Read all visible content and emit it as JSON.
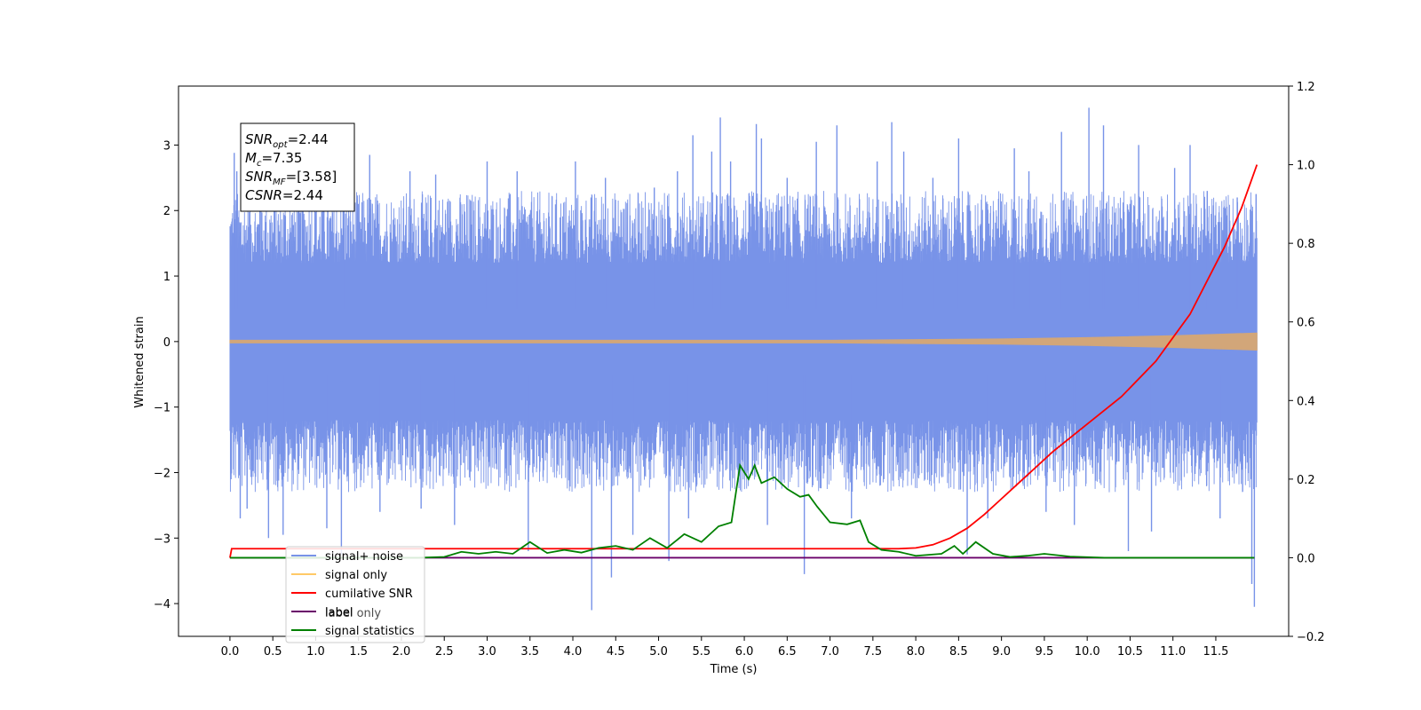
{
  "chart_data": {
    "type": "line",
    "xlabel": "Time (s)",
    "ylabel": "Whitened strain",
    "xlim": [
      -0.6,
      12.35
    ],
    "ylim": [
      -4.5,
      3.9
    ],
    "y2lim": [
      -0.2,
      1.2
    ],
    "x_ticks": [
      0.0,
      0.5,
      1.0,
      1.5,
      2.0,
      2.5,
      3.0,
      3.5,
      4.0,
      4.5,
      5.0,
      5.5,
      6.0,
      6.5,
      7.0,
      7.5,
      8.0,
      8.5,
      9.0,
      9.5,
      10.0,
      10.5,
      11.0,
      11.5
    ],
    "x_tick_labels": [
      "0.0",
      "0.5",
      "1.0",
      "1.5",
      "2.0",
      "2.5",
      "3.0",
      "3.5",
      "4.0",
      "4.5",
      "5.0",
      "5.5",
      "6.0",
      "6.5",
      "7.0",
      "7.5",
      "8.0",
      "8.5",
      "9.0",
      "9.5",
      "10.0",
      "10.5",
      "11.0",
      "11.5"
    ],
    "y_ticks": [
      3,
      2,
      1,
      0,
      -1,
      -2,
      -3,
      -4
    ],
    "y_tick_labels": [
      "3",
      "2",
      "1",
      "0",
      "−1",
      "−2",
      "−3",
      "−4"
    ],
    "y2_ticks": [
      1.2,
      1.0,
      0.8,
      0.6,
      0.4,
      0.2,
      0.0,
      -0.2
    ],
    "y2_tick_labels": [
      "1.2",
      "1.0",
      "0.8",
      "0.6",
      "0.4",
      "0.2",
      "0.0",
      "−0.2"
    ],
    "annotation": {
      "lines": [
        {
          "sym": "SNR",
          "sub": "opt",
          "val": "=2.44"
        },
        {
          "sym": "M",
          "sub": "c",
          "val": "=7.35"
        },
        {
          "sym": "SNR",
          "sub": "MF",
          "val": "=[3.58]"
        },
        {
          "sym": "CSNR",
          "sub": "",
          "val": "=2.44"
        }
      ]
    },
    "legend": {
      "position": "lower-left",
      "entries": [
        {
          "label": "signal+ noise",
          "color": "#7893e8"
        },
        {
          "label": "signal only",
          "color": "#ffc966"
        },
        {
          "label": "cumilative SNR",
          "color": "#ff0000"
        },
        {
          "label": "label",
          "color": "#6a006a"
        },
        {
          "label": "signal statistics",
          "color": "#008000"
        }
      ],
      "faded_label": "label only"
    },
    "series": [
      {
        "name": "signal+ noise",
        "color": "#7893e8",
        "axis": "left",
        "x_range": [
          0.0,
          11.98
        ],
        "band": {
          "upper_typical": [
            1.2,
            2.3
          ],
          "lower_typical": [
            -1.2,
            -2.3
          ]
        },
        "spikes": [
          {
            "x": 0.05,
            "y": 2.88
          },
          {
            "x": 0.08,
            "y": 2.6
          },
          {
            "x": 0.12,
            "y": -2.7
          },
          {
            "x": 0.2,
            "y": -2.55
          },
          {
            "x": 0.35,
            "y": 2.5
          },
          {
            "x": 0.45,
            "y": -3.0
          },
          {
            "x": 0.62,
            "y": -2.95
          },
          {
            "x": 0.8,
            "y": 2.45
          },
          {
            "x": 1.13,
            "y": -2.85
          },
          {
            "x": 1.3,
            "y": -3.25
          },
          {
            "x": 1.33,
            "y": 2.3
          },
          {
            "x": 1.63,
            "y": 2.85
          },
          {
            "x": 1.75,
            "y": -2.6
          },
          {
            "x": 2.1,
            "y": 2.6
          },
          {
            "x": 2.23,
            "y": -2.55
          },
          {
            "x": 2.4,
            "y": 2.55
          },
          {
            "x": 2.62,
            "y": -2.8
          },
          {
            "x": 3.0,
            "y": 2.75
          },
          {
            "x": 3.35,
            "y": 2.6
          },
          {
            "x": 3.48,
            "y": -3.2
          },
          {
            "x": 4.03,
            "y": 2.75
          },
          {
            "x": 4.22,
            "y": -4.1
          },
          {
            "x": 4.38,
            "y": 2.5
          },
          {
            "x": 4.45,
            "y": -3.6
          },
          {
            "x": 4.7,
            "y": -2.95
          },
          {
            "x": 4.95,
            "y": 2.35
          },
          {
            "x": 5.12,
            "y": -3.35
          },
          {
            "x": 5.22,
            "y": 2.6
          },
          {
            "x": 5.35,
            "y": -2.7
          },
          {
            "x": 5.4,
            "y": 3.15
          },
          {
            "x": 5.62,
            "y": 2.9
          },
          {
            "x": 5.72,
            "y": 3.42
          },
          {
            "x": 5.84,
            "y": 2.75
          },
          {
            "x": 6.14,
            "y": 3.32
          },
          {
            "x": 6.2,
            "y": 3.1
          },
          {
            "x": 6.27,
            "y": -2.8
          },
          {
            "x": 6.5,
            "y": 2.5
          },
          {
            "x": 6.7,
            "y": -3.55
          },
          {
            "x": 6.84,
            "y": 3.05
          },
          {
            "x": 7.08,
            "y": 3.3
          },
          {
            "x": 7.25,
            "y": -2.7
          },
          {
            "x": 7.55,
            "y": 2.75
          },
          {
            "x": 7.72,
            "y": 3.35
          },
          {
            "x": 7.86,
            "y": 2.9
          },
          {
            "x": 8.2,
            "y": 2.5
          },
          {
            "x": 8.5,
            "y": 3.1
          },
          {
            "x": 8.6,
            "y": -3.25
          },
          {
            "x": 8.84,
            "y": -2.7
          },
          {
            "x": 9.15,
            "y": 2.95
          },
          {
            "x": 9.32,
            "y": 2.6
          },
          {
            "x": 9.52,
            "y": -2.6
          },
          {
            "x": 9.7,
            "y": 3.2
          },
          {
            "x": 9.85,
            "y": -2.8
          },
          {
            "x": 10.02,
            "y": 3.57
          },
          {
            "x": 10.19,
            "y": 3.3
          },
          {
            "x": 10.48,
            "y": -3.2
          },
          {
            "x": 10.6,
            "y": 3.0
          },
          {
            "x": 10.75,
            "y": -2.9
          },
          {
            "x": 11.02,
            "y": 2.65
          },
          {
            "x": 11.2,
            "y": 3.0
          },
          {
            "x": 11.4,
            "y": 2.3
          },
          {
            "x": 11.55,
            "y": -2.7
          },
          {
            "x": 11.75,
            "y": 2.2
          },
          {
            "x": 11.92,
            "y": -3.7
          },
          {
            "x": 11.95,
            "y": -4.05
          },
          {
            "x": 11.97,
            "y": 2.25
          }
        ]
      },
      {
        "name": "signal only",
        "color": "#d2a679",
        "axis": "left",
        "envelope": [
          {
            "x": 0.0,
            "y": 0.02
          },
          {
            "x": 7.0,
            "y": 0.02
          },
          {
            "x": 8.0,
            "y": 0.03
          },
          {
            "x": 9.0,
            "y": 0.04
          },
          {
            "x": 10.0,
            "y": 0.06
          },
          {
            "x": 11.0,
            "y": 0.09
          },
          {
            "x": 11.5,
            "y": 0.11
          },
          {
            "x": 11.98,
            "y": 0.13
          }
        ]
      },
      {
        "name": "cumilative SNR",
        "color": "#ff0000",
        "axis": "right",
        "points": [
          {
            "x": 0.0,
            "y": 0.0
          },
          {
            "x": 0.02,
            "y": 0.023
          },
          {
            "x": 7.8,
            "y": 0.023
          },
          {
            "x": 8.0,
            "y": 0.025
          },
          {
            "x": 8.2,
            "y": 0.033
          },
          {
            "x": 8.4,
            "y": 0.05
          },
          {
            "x": 8.6,
            "y": 0.075
          },
          {
            "x": 8.8,
            "y": 0.11
          },
          {
            "x": 9.0,
            "y": 0.15
          },
          {
            "x": 9.3,
            "y": 0.21
          },
          {
            "x": 9.6,
            "y": 0.27
          },
          {
            "x": 10.0,
            "y": 0.34
          },
          {
            "x": 10.4,
            "y": 0.41
          },
          {
            "x": 10.8,
            "y": 0.5
          },
          {
            "x": 11.2,
            "y": 0.62
          },
          {
            "x": 11.6,
            "y": 0.79
          },
          {
            "x": 11.8,
            "y": 0.89
          },
          {
            "x": 11.98,
            "y": 1.0
          }
        ]
      },
      {
        "name": "label",
        "color": "#6a006a",
        "axis": "right",
        "points": [
          {
            "x": 0.0,
            "y": 0.0
          },
          {
            "x": 11.95,
            "y": 0.0
          }
        ]
      },
      {
        "name": "signal statistics",
        "color": "#008000",
        "axis": "right",
        "points": [
          {
            "x": 0.0,
            "y": 0.0
          },
          {
            "x": 2.2,
            "y": 0.0
          },
          {
            "x": 2.5,
            "y": 0.002
          },
          {
            "x": 2.7,
            "y": 0.015
          },
          {
            "x": 2.9,
            "y": 0.01
          },
          {
            "x": 3.1,
            "y": 0.015
          },
          {
            "x": 3.3,
            "y": 0.01
          },
          {
            "x": 3.5,
            "y": 0.04
          },
          {
            "x": 3.7,
            "y": 0.012
          },
          {
            "x": 3.9,
            "y": 0.02
          },
          {
            "x": 4.1,
            "y": 0.013
          },
          {
            "x": 4.3,
            "y": 0.025
          },
          {
            "x": 4.5,
            "y": 0.03
          },
          {
            "x": 4.7,
            "y": 0.02
          },
          {
            "x": 4.9,
            "y": 0.05
          },
          {
            "x": 5.1,
            "y": 0.025
          },
          {
            "x": 5.3,
            "y": 0.06
          },
          {
            "x": 5.5,
            "y": 0.04
          },
          {
            "x": 5.7,
            "y": 0.08
          },
          {
            "x": 5.85,
            "y": 0.09
          },
          {
            "x": 5.95,
            "y": 0.235
          },
          {
            "x": 6.05,
            "y": 0.2
          },
          {
            "x": 6.12,
            "y": 0.235
          },
          {
            "x": 6.2,
            "y": 0.19
          },
          {
            "x": 6.35,
            "y": 0.205
          },
          {
            "x": 6.5,
            "y": 0.175
          },
          {
            "x": 6.65,
            "y": 0.155
          },
          {
            "x": 6.75,
            "y": 0.16
          },
          {
            "x": 6.85,
            "y": 0.13
          },
          {
            "x": 7.0,
            "y": 0.09
          },
          {
            "x": 7.2,
            "y": 0.085
          },
          {
            "x": 7.35,
            "y": 0.095
          },
          {
            "x": 7.45,
            "y": 0.04
          },
          {
            "x": 7.6,
            "y": 0.02
          },
          {
            "x": 7.8,
            "y": 0.015
          },
          {
            "x": 8.0,
            "y": 0.005
          },
          {
            "x": 8.3,
            "y": 0.01
          },
          {
            "x": 8.45,
            "y": 0.03
          },
          {
            "x": 8.55,
            "y": 0.01
          },
          {
            "x": 8.7,
            "y": 0.04
          },
          {
            "x": 8.9,
            "y": 0.01
          },
          {
            "x": 9.1,
            "y": 0.002
          },
          {
            "x": 9.3,
            "y": 0.005
          },
          {
            "x": 9.5,
            "y": 0.01
          },
          {
            "x": 9.8,
            "y": 0.003
          },
          {
            "x": 10.2,
            "y": 0.0
          },
          {
            "x": 11.95,
            "y": 0.0
          }
        ]
      }
    ]
  }
}
